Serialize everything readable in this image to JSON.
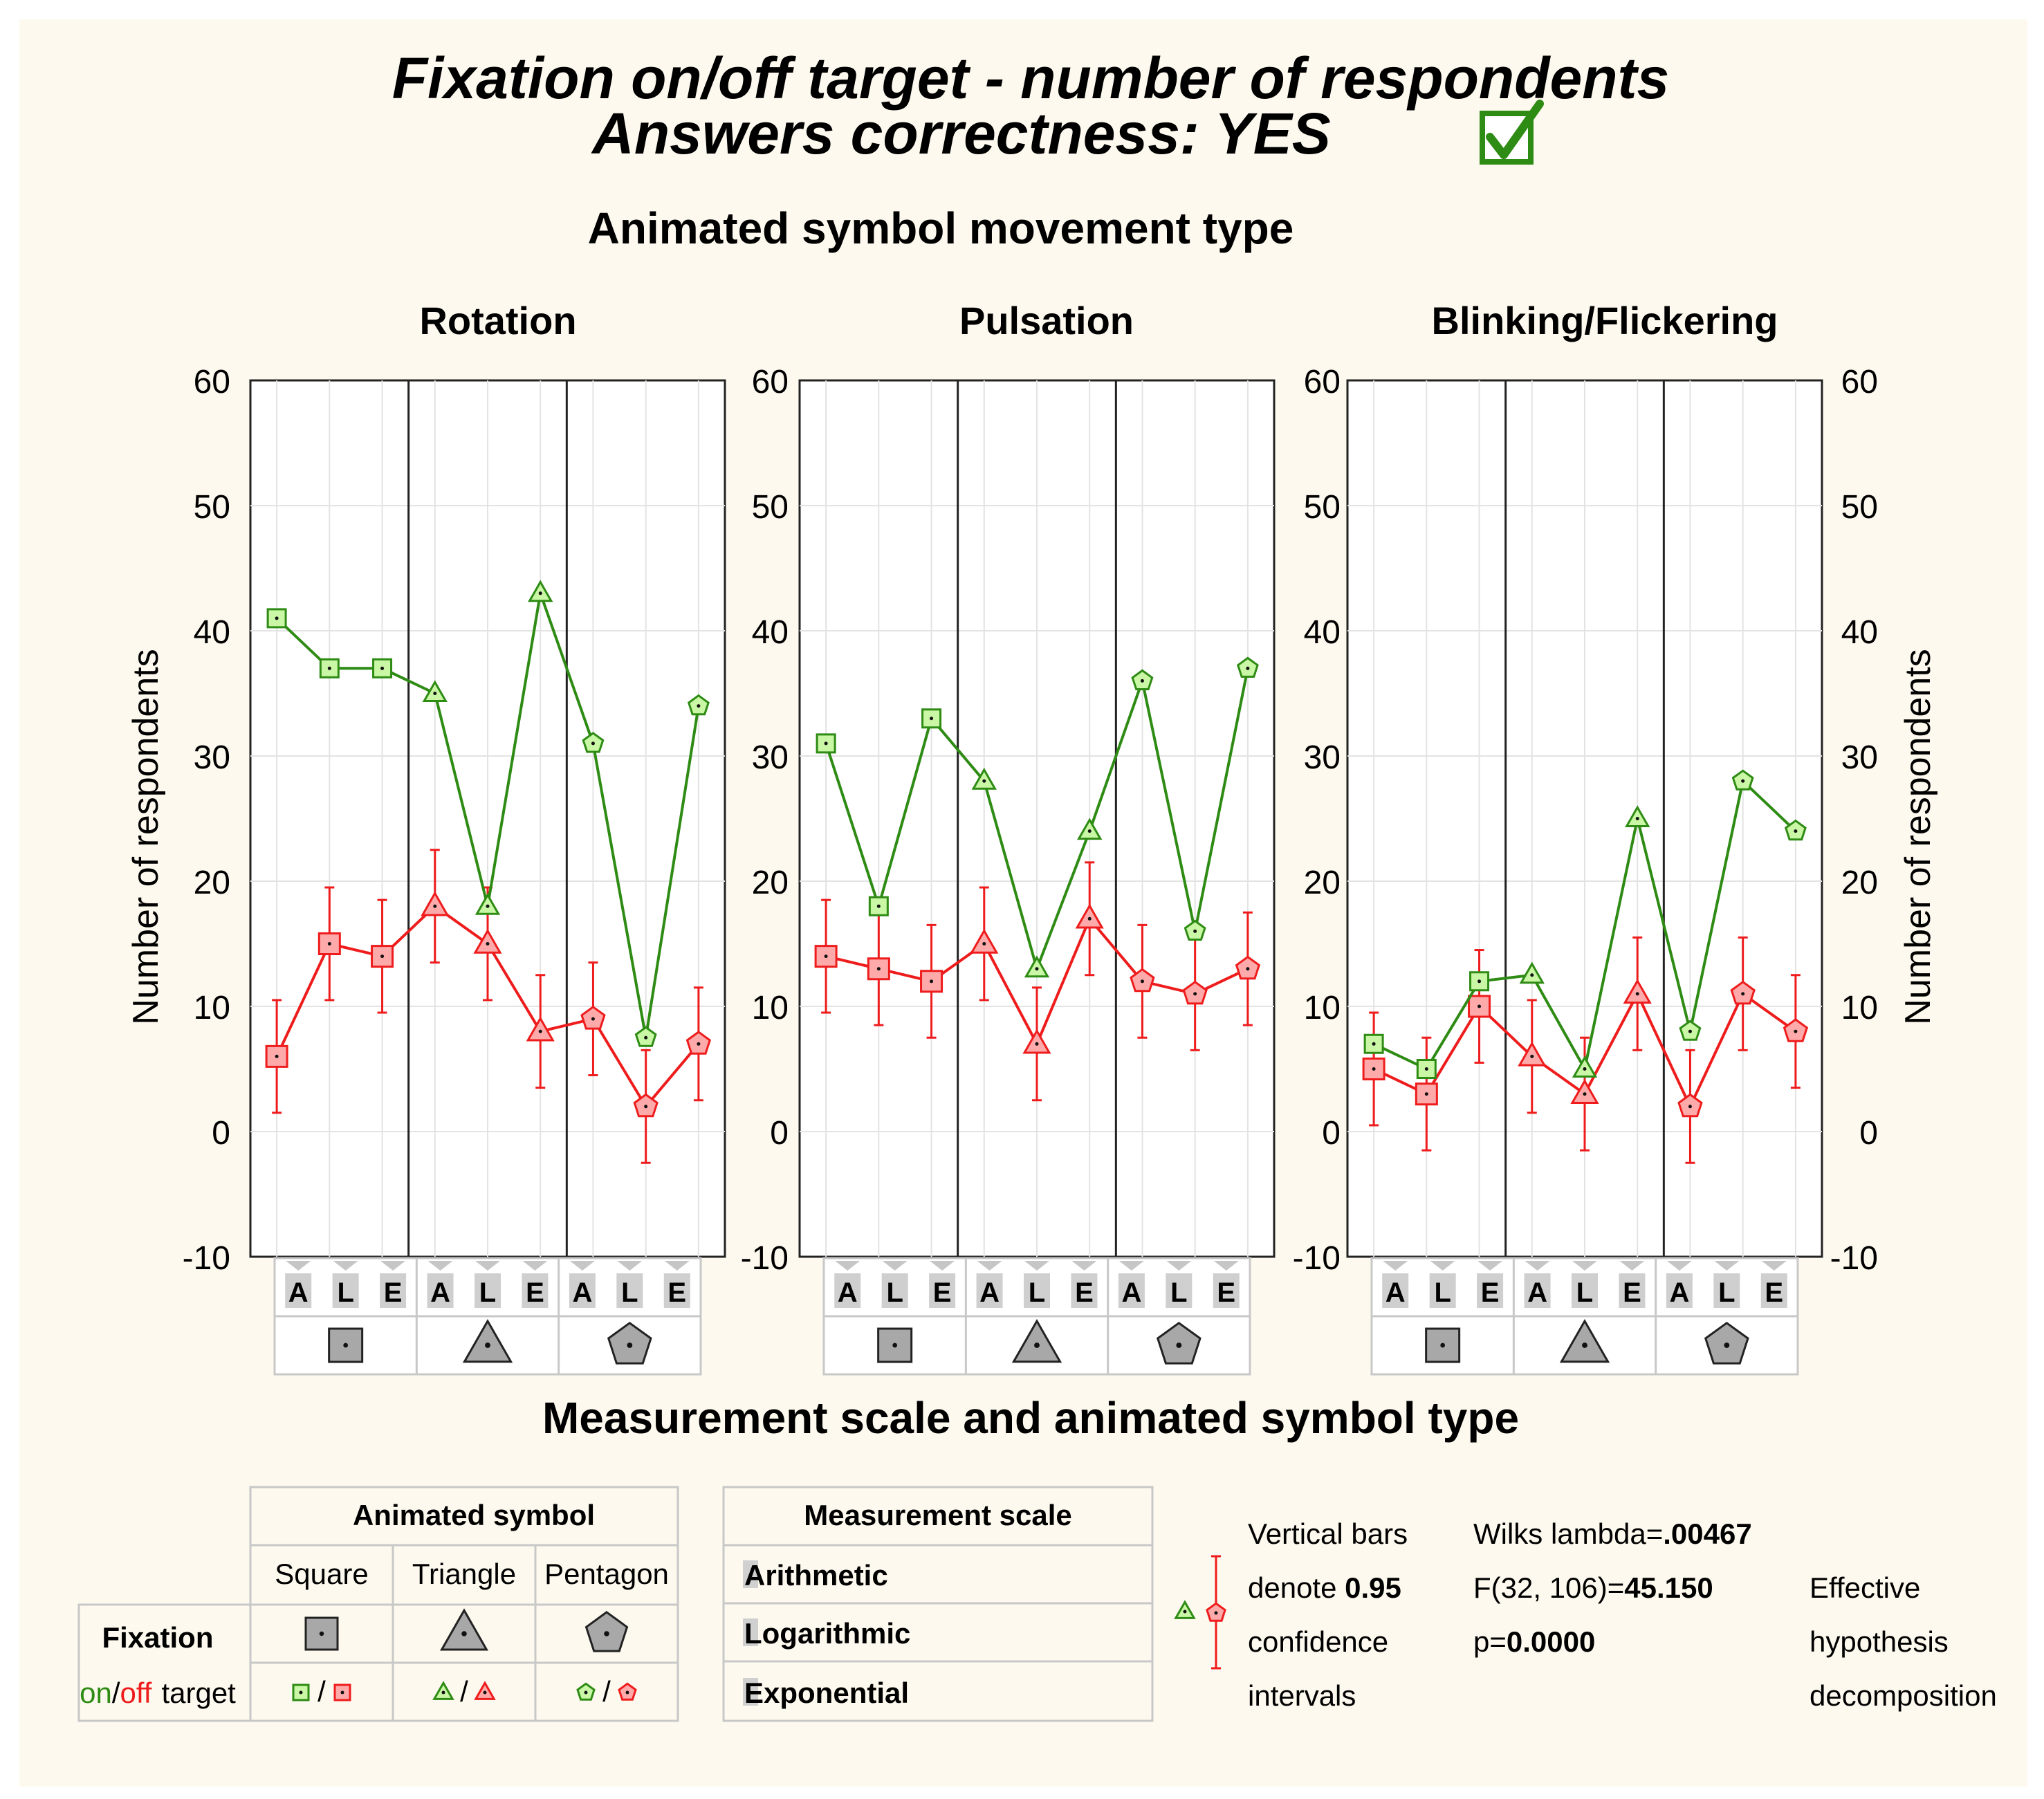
{
  "title": {
    "line1": "Fixation on/off target -  number of respondents",
    "line2": "Answers correctness: YES"
  },
  "supertitle": "Animated symbol movement type",
  "x_title": "Measurement scale and animated symbol type",
  "y_label": "Number of respondents",
  "colors": {
    "on": "#2e8b14",
    "off": "#ee1c1c",
    "on_fill": "#c9f7a5",
    "off_fill": "#ffaaaa",
    "background": "#fdf9ee",
    "check": "#2e8b14",
    "symbol_fill": "#a8a8a8",
    "scale_box": "#cfcfcf"
  },
  "scale_letters": [
    "A",
    "L",
    "E",
    "A",
    "L",
    "E",
    "A",
    "L",
    "E"
  ],
  "symbol_icons": [
    "square-icon",
    "triangle-icon",
    "pentagon-icon"
  ],
  "chart_data": {
    "type": "line",
    "y_ticks": [
      "60",
      "50",
      "40",
      "30",
      "20",
      "10",
      "0",
      "-10"
    ],
    "ylim": [
      -10,
      60
    ],
    "ci_half_width": 4.5,
    "categories": [
      "A",
      "L",
      "E",
      "A",
      "L",
      "E",
      "A",
      "L",
      "E"
    ],
    "marker_groups": [
      "square",
      "square",
      "square",
      "triangle",
      "triangle",
      "triangle",
      "pentagon",
      "pentagon",
      "pentagon"
    ],
    "panels": [
      {
        "title": "Rotation",
        "series": [
          {
            "name": "on target",
            "values": [
              41,
              37,
              37,
              35,
              18,
              43,
              31,
              7.5,
              34
            ]
          },
          {
            "name": "off target",
            "values": [
              6,
              15,
              14,
              18,
              15,
              8,
              9,
              2,
              7
            ]
          }
        ]
      },
      {
        "title": "Pulsation",
        "series": [
          {
            "name": "on target",
            "values": [
              31,
              18,
              33,
              28,
              13,
              24,
              36,
              16,
              37
            ]
          },
          {
            "name": "off target",
            "values": [
              14,
              13,
              12,
              15,
              7,
              17,
              12,
              11,
              13
            ]
          }
        ]
      },
      {
        "title": "Blinking/Flickering",
        "series": [
          {
            "name": "on target",
            "values": [
              7,
              5,
              12,
              12.5,
              5,
              25,
              8,
              28,
              24
            ]
          },
          {
            "name": "off target",
            "values": [
              5,
              3,
              10,
              6,
              3,
              11,
              2,
              11,
              8
            ]
          }
        ]
      }
    ]
  },
  "legend": {
    "symbol_header": "Animated symbol",
    "symbols": [
      "Square",
      "Triangle",
      "Pentagon"
    ],
    "fixation_label": "Fixation",
    "on_label": "on",
    "slash": "/",
    "off_label": "off",
    "target_label": "target",
    "scale_header": "Measurement scale",
    "scales": [
      "Arithmetic",
      "Logarithmic",
      "Exponential"
    ],
    "ci_text": [
      "Vertical bars",
      "denote",
      "0.95",
      "confidence",
      "intervals"
    ],
    "wilks_label": "Wilks lambda=",
    "wilks_value": ".00467",
    "f_label": "F(32, 106)=",
    "f_value": "45.150",
    "p_label": "p=",
    "p_value": "0.0000",
    "effective": [
      "Effective",
      "hypothesis",
      "decomposition"
    ]
  }
}
